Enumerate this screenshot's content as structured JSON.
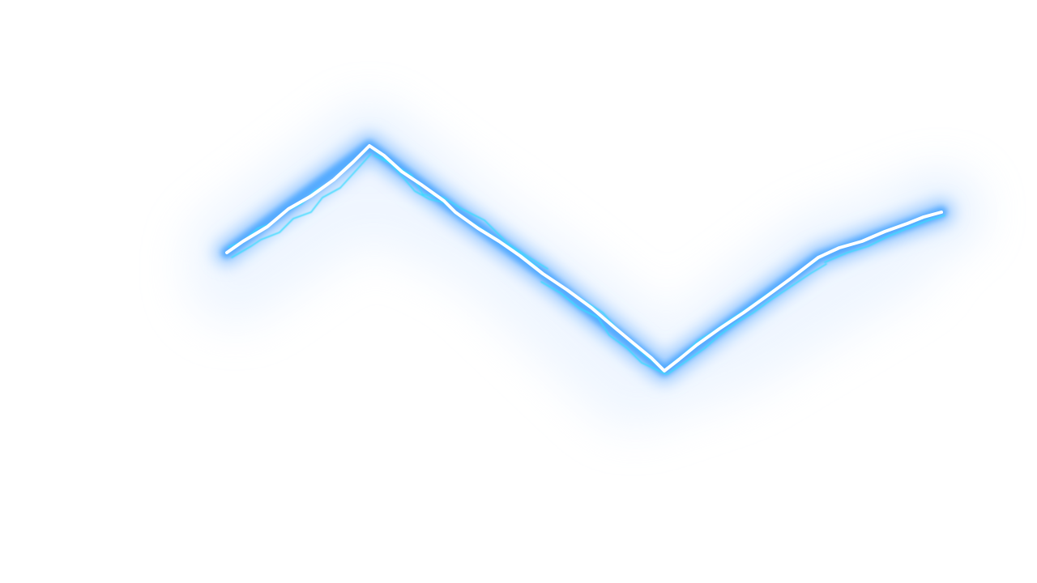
{
  "scene": {
    "subject": "lightning-bolt",
    "palette": {
      "background": "#ffffff",
      "haze": "#d6e8ff",
      "glow": "#5aa8ff",
      "electric": "#38d8ff",
      "core": "#ffffff"
    }
  }
}
